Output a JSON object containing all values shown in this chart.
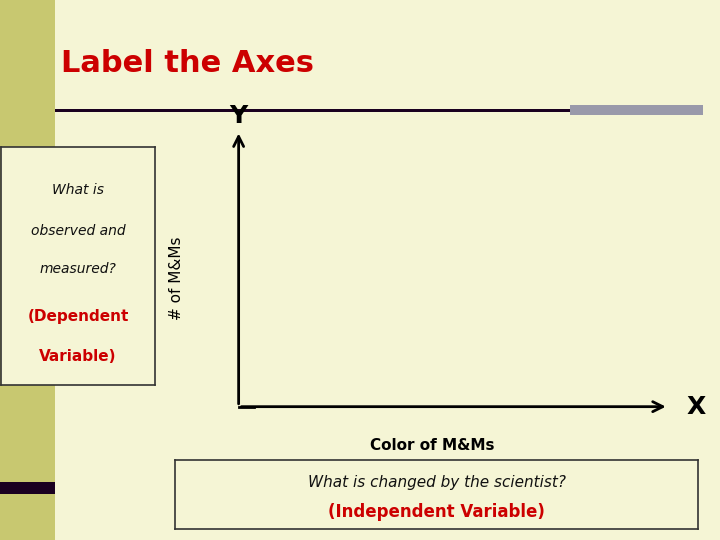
{
  "title": "Label the Axes",
  "title_color": "#cc0000",
  "title_fontsize": 22,
  "bg_color": "#f5f5d5",
  "left_panel_color": "#c8c870",
  "left_box_text_line1": "What is",
  "left_box_text_line2": "observed and",
  "left_box_text_line3": "measured?",
  "left_box_text_line4": "(Dependent",
  "left_box_text_line5": "Variable)",
  "left_box_text_color_normal": "#111111",
  "left_box_text_color_red": "#cc0000",
  "ylabel": "# of M&Ms",
  "xlabel": "Color of M&Ms",
  "axis_label_Y": "Y",
  "axis_label_X": "X",
  "bottom_box_line1": "What is changed by the scientist?",
  "bottom_box_line2": "(Independent Variable)",
  "bottom_box_text_color_normal": "#111111",
  "bottom_box_text_color_red": "#cc0000",
  "horizontal_line_color": "#1a0020",
  "gray_rect_color": "#9999aa",
  "dark_bottom_color": "#1a0020"
}
